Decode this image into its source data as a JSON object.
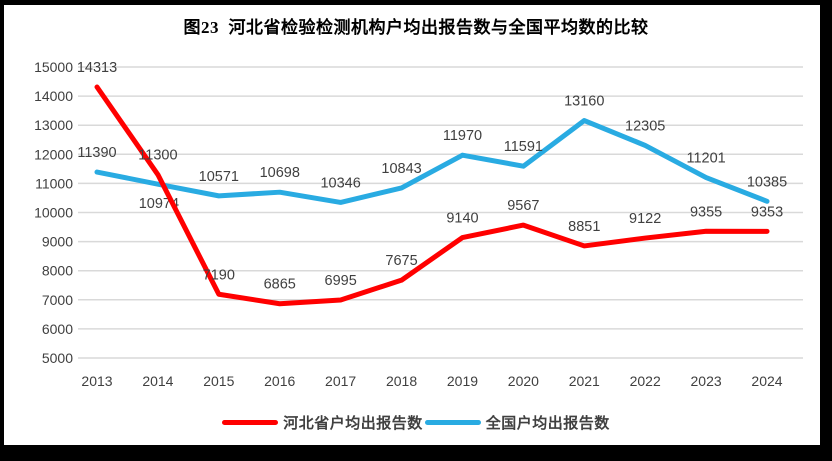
{
  "title": "图23  河北省检验检测机构户均出报告数与全国平均数的比较",
  "legend": {
    "items": [
      {
        "label": "河北省户均出报告数"
      },
      {
        "label": "全国户均出报告数"
      }
    ]
  },
  "chart_data": {
    "type": "line",
    "title": "图23  河北省检验检测机构户均出报告数与全国平均数的比较",
    "categories": [
      "2013",
      "2014",
      "2015",
      "2016",
      "2017",
      "2018",
      "2019",
      "2020",
      "2021",
      "2022",
      "2023",
      "2024"
    ],
    "series": [
      {
        "name": "河北省户均出报告数",
        "id": "hebei",
        "color": "#FF0000",
        "values": [
          14313,
          11300,
          7190,
          6865,
          6995,
          7675,
          9140,
          9567,
          8851,
          9122,
          9355,
          9353
        ]
      },
      {
        "name": "全国户均出报告数",
        "id": "national",
        "color": "#29ABE2",
        "values": [
          11390,
          10974,
          10571,
          10698,
          10346,
          10843,
          11970,
          11591,
          13160,
          12305,
          11201,
          10385
        ]
      }
    ],
    "xlabel": "",
    "ylabel": "",
    "ylim": [
      5000,
      15000
    ],
    "yticks": [
      5000,
      6000,
      7000,
      8000,
      9000,
      10000,
      11000,
      12000,
      13000,
      14000,
      15000
    ],
    "grid": "horizontal-only",
    "legend_position": "bottom",
    "data_labels": true,
    "colors": {
      "gridline": "#D9D9D9",
      "tick_label": "#404040",
      "data_label": "#404040",
      "background": "#FFFFFF",
      "frame": "#000000"
    },
    "label_overrides": [
      {
        "series": 1,
        "index": 1,
        "dx": 1,
        "dy": 24
      }
    ]
  }
}
